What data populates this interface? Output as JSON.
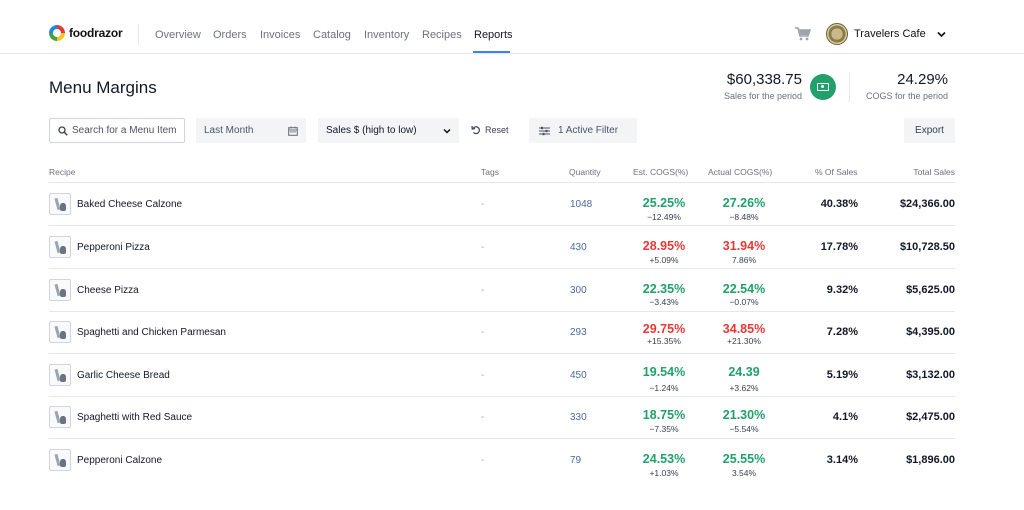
{
  "brand": {
    "name": "foodrazor"
  },
  "nav": {
    "items": [
      {
        "label": "Overview"
      },
      {
        "label": "Orders"
      },
      {
        "label": "Invoices"
      },
      {
        "label": "Catalog"
      },
      {
        "label": "Inventory"
      },
      {
        "label": "Recipes"
      },
      {
        "label": "Reports",
        "active": true
      }
    ]
  },
  "account": {
    "name": "Travelers Cafe"
  },
  "page": {
    "title": "Menu Margins"
  },
  "kpis": {
    "sales": {
      "value": "$60,338.75",
      "label": "Sales for the period"
    },
    "cogs": {
      "value": "24.29%",
      "label": "COGS for the period"
    }
  },
  "filters": {
    "search_placeholder": "Search for a Menu Item",
    "date_range": "Last Month",
    "sort": "Sales $ (high to low)",
    "reset_label": "Reset",
    "active_filter_label": "1 Active Filter",
    "export_label": "Export"
  },
  "table": {
    "headers": {
      "recipe": "Recipe",
      "tags": "Tags",
      "quantity": "Quantity",
      "est_cogs": "Est. COGS(%)",
      "actual_cogs": "Actual COGS(%)",
      "pct_sales": "% Of Sales",
      "total_sales": "Total Sales"
    },
    "rows": [
      {
        "name": "Baked Cheese Calzone",
        "tags": "-",
        "quantity": "1048",
        "est": "25.25%",
        "est_status": "good",
        "est_delta": "−12.49%",
        "actual": "27.26%",
        "actual_status": "good",
        "actual_delta": "−8.48%",
        "pct_sales": "40.38%",
        "total": "$24,366.00"
      },
      {
        "name": "Pepperoni Pizza",
        "tags": "-",
        "quantity": "430",
        "est": "28.95%",
        "est_status": "bad",
        "est_delta": "+5.09%",
        "actual": "31.94%",
        "actual_status": "bad",
        "actual_delta": "7.86%",
        "pct_sales": "17.78%",
        "total": "$10,728.50"
      },
      {
        "name": "Cheese Pizza",
        "tags": "-",
        "quantity": "300",
        "est": "22.35%",
        "est_status": "good",
        "est_delta": "−3.43%",
        "actual": "22.54%",
        "actual_status": "good",
        "actual_delta": "−0.07%",
        "pct_sales": "9.32%",
        "total": "$5,625.00"
      },
      {
        "name": "Spaghetti and Chicken Parmesan",
        "tags": "-",
        "quantity": "293",
        "est": "29.75%",
        "est_status": "bad",
        "est_delta": "+15.35%",
        "actual": "34.85%",
        "actual_status": "bad",
        "actual_delta": "+21.30%",
        "pct_sales": "7.28%",
        "total": "$4,395.00"
      },
      {
        "name": "Garlic Cheese Bread",
        "tags": "-",
        "quantity": "450",
        "est": "19.54%",
        "est_status": "good",
        "est_delta": "−1.24%",
        "actual": "24.39",
        "actual_status": "good",
        "actual_delta": "+3.62%",
        "pct_sales": "5.19%",
        "total": "$3,132.00"
      },
      {
        "name": "Spaghetti with Red Sauce",
        "tags": "-",
        "quantity": "330",
        "est": "18.75%",
        "est_status": "good",
        "est_delta": "−7.35%",
        "actual": "21.30%",
        "actual_status": "good",
        "actual_delta": "−5.54%",
        "pct_sales": "4.1%",
        "total": "$2,475.00"
      },
      {
        "name": "Pepperoni Calzone",
        "tags": "-",
        "quantity": "79",
        "est": "24.53%",
        "est_status": "good",
        "est_delta": "+1.03%",
        "actual": "25.55%",
        "actual_status": "good",
        "actual_delta": "3.54%",
        "pct_sales": "3.14%",
        "total": "$1,896.00"
      }
    ]
  },
  "colors": {
    "good": "#22a06b",
    "bad": "#e53935",
    "accent": "#3b82f6"
  }
}
